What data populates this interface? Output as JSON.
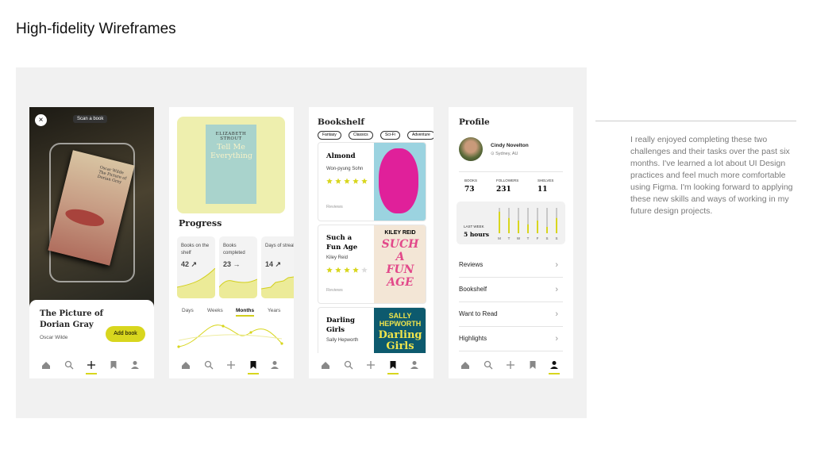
{
  "title": "High-fidelity Wireframes",
  "scan_screen": {
    "scan_label": "Scan a book",
    "cover_author": "Oscar Wilde",
    "cover_title": "The Picture of Dorian Gray",
    "book_title": "The Picture of Dorian Gray",
    "author": "Oscar Wilde",
    "button": "Add book"
  },
  "progress_screen": {
    "cover_author": "ELIZABETH STROUT",
    "cover_title": "Tell Me Everything",
    "heading": "Progress",
    "stats": [
      {
        "label": "Books on the shelf",
        "value": "42",
        "trend": "↗"
      },
      {
        "label": "Books completed",
        "value": "23",
        "trend": "→"
      },
      {
        "label": "Days of streak",
        "value": "14",
        "trend": "↗"
      }
    ],
    "tabs": [
      "Days",
      "Weeks",
      "Months",
      "Years"
    ]
  },
  "bookshelf_screen": {
    "heading": "Bookshelf",
    "filters": [
      "Fantasy",
      "Classics",
      "Sci-Fi",
      "Adventure"
    ],
    "max_rating": 5,
    "books": [
      {
        "title": "Almond",
        "author": "Won-pyung Sohn",
        "rating": 5,
        "reviews": "Reviews"
      },
      {
        "title": "Such a Fun Age",
        "author": "Kiley Reid",
        "rating": 4,
        "reviews": "Reviews",
        "cover_author": "KILEY REID",
        "cover_title": "SUCH A FUN AGE"
      },
      {
        "title": "Darling Girls",
        "author": "Sally Hepworth",
        "cover_author": "SALLY HEPWORTH",
        "cover_title": "Darling Girls"
      }
    ]
  },
  "profile_screen": {
    "heading": "Profile",
    "name": "Cindy Novelton",
    "location": "Sydney, AU",
    "stats": [
      {
        "label": "BOOKS",
        "value": "73"
      },
      {
        "label": "FOLLOWERS",
        "value": "231"
      },
      {
        "label": "SHELVES",
        "value": "11"
      }
    ],
    "week_label": "LAST WEEK",
    "week_total": "5 hours",
    "days": [
      "M",
      "T",
      "W",
      "T",
      "F",
      "S",
      "S"
    ],
    "day_levels": [
      0.85,
      0.6,
      0.5,
      0.35,
      0.5,
      0.25,
      0.6
    ],
    "menu": [
      "Reviews",
      "Bookshelf",
      "Want to Read",
      "Highlights"
    ]
  },
  "description": "I really enjoyed completing these two challenges and their tasks over the past six months. I've learned a lot about UI Design practices and feel much more comfortable using Figma. I'm looking forward to applying these new skills and ways of working in my future design projects."
}
